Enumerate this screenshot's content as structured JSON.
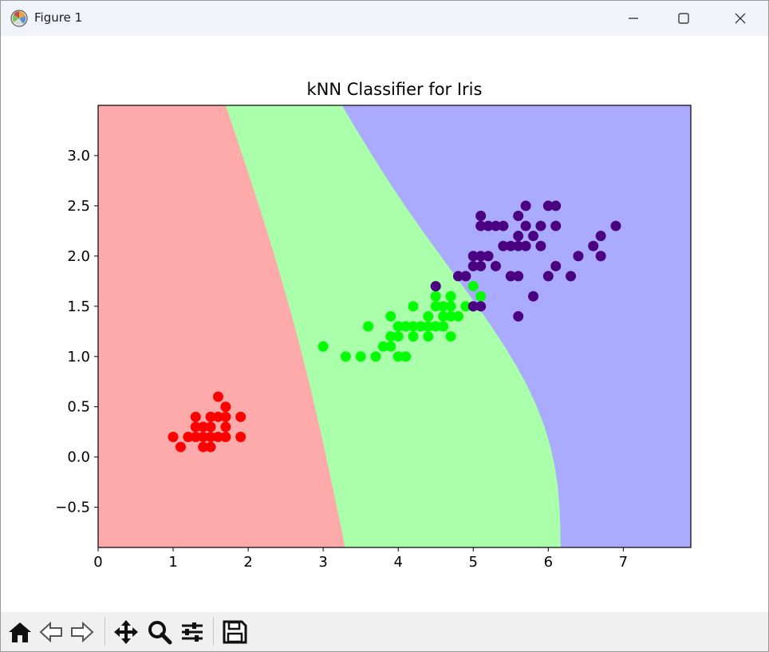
{
  "window": {
    "title": "Figure 1",
    "controls": [
      "minimize",
      "maximize",
      "close"
    ]
  },
  "toolbar": {
    "buttons": [
      "home-icon",
      "back-icon",
      "forward-icon",
      "pan-icon",
      "zoom-icon",
      "configure-subplots-icon",
      "save-icon"
    ]
  },
  "colors": {
    "region_class0": "#ffaaaa",
    "region_class1": "#aaffaa",
    "region_class2": "#aaaaff",
    "point_class0": "#ff0000",
    "point_class1": "#00ff00",
    "point_class2": "#4b0082"
  },
  "chart_data": {
    "type": "scatter",
    "title": "kNN Classifier for Iris",
    "xlabel": "",
    "ylabel": "",
    "xlim": [
      0,
      7.9
    ],
    "ylim": [
      -0.9,
      3.5
    ],
    "xticks": [
      "0",
      "1",
      "2",
      "3",
      "4",
      "5",
      "6",
      "7"
    ],
    "yticks": [
      "−0.5",
      "0.0",
      "0.5",
      "1.0",
      "1.5",
      "2.0",
      "2.5",
      "3.0"
    ],
    "grid": false,
    "legend": "none",
    "decision_regions": [
      {
        "class": 0,
        "boundary_x_at_top": 1.7,
        "boundary_x_at_bottom": 3.3
      },
      {
        "class": 1,
        "boundary_x_at_top": 3.25,
        "boundary_x_at_bottom": 6.15
      },
      {
        "class": 2
      }
    ],
    "series": [
      {
        "class": 0,
        "points": [
          [
            1.0,
            0.2
          ],
          [
            1.1,
            0.1
          ],
          [
            1.2,
            0.2
          ],
          [
            1.3,
            0.2
          ],
          [
            1.3,
            0.3
          ],
          [
            1.3,
            0.4
          ],
          [
            1.4,
            0.1
          ],
          [
            1.4,
            0.2
          ],
          [
            1.4,
            0.3
          ],
          [
            1.5,
            0.1
          ],
          [
            1.5,
            0.2
          ],
          [
            1.5,
            0.3
          ],
          [
            1.5,
            0.4
          ],
          [
            1.6,
            0.2
          ],
          [
            1.6,
            0.4
          ],
          [
            1.6,
            0.6
          ],
          [
            1.7,
            0.2
          ],
          [
            1.7,
            0.3
          ],
          [
            1.7,
            0.4
          ],
          [
            1.7,
            0.5
          ],
          [
            1.9,
            0.2
          ],
          [
            1.9,
            0.4
          ]
        ]
      },
      {
        "class": 1,
        "points": [
          [
            3.0,
            1.1
          ],
          [
            3.3,
            1.0
          ],
          [
            3.5,
            1.0
          ],
          [
            3.6,
            1.3
          ],
          [
            3.7,
            1.0
          ],
          [
            3.8,
            1.1
          ],
          [
            3.9,
            1.1
          ],
          [
            3.9,
            1.2
          ],
          [
            3.9,
            1.4
          ],
          [
            4.0,
            1.0
          ],
          [
            4.0,
            1.2
          ],
          [
            4.0,
            1.3
          ],
          [
            4.1,
            1.0
          ],
          [
            4.1,
            1.3
          ],
          [
            4.2,
            1.2
          ],
          [
            4.2,
            1.3
          ],
          [
            4.2,
            1.5
          ],
          [
            4.3,
            1.3
          ],
          [
            4.4,
            1.2
          ],
          [
            4.4,
            1.3
          ],
          [
            4.4,
            1.4
          ],
          [
            4.5,
            1.3
          ],
          [
            4.5,
            1.5
          ],
          [
            4.5,
            1.6
          ],
          [
            4.6,
            1.3
          ],
          [
            4.6,
            1.4
          ],
          [
            4.6,
            1.5
          ],
          [
            4.7,
            1.2
          ],
          [
            4.7,
            1.4
          ],
          [
            4.7,
            1.5
          ],
          [
            4.7,
            1.6
          ],
          [
            4.8,
            1.4
          ],
          [
            4.9,
            1.5
          ],
          [
            5.0,
            1.7
          ],
          [
            5.1,
            1.6
          ]
        ]
      },
      {
        "class": 2,
        "points": [
          [
            4.5,
            1.7
          ],
          [
            4.8,
            1.8
          ],
          [
            4.9,
            1.8
          ],
          [
            5.0,
            1.5
          ],
          [
            5.0,
            1.9
          ],
          [
            5.0,
            2.0
          ],
          [
            5.1,
            1.5
          ],
          [
            5.1,
            1.9
          ],
          [
            5.1,
            2.0
          ],
          [
            5.1,
            2.3
          ],
          [
            5.1,
            2.4
          ],
          [
            5.2,
            2.0
          ],
          [
            5.2,
            2.3
          ],
          [
            5.3,
            1.9
          ],
          [
            5.3,
            2.3
          ],
          [
            5.4,
            2.1
          ],
          [
            5.4,
            2.3
          ],
          [
            5.5,
            1.8
          ],
          [
            5.5,
            2.1
          ],
          [
            5.6,
            1.4
          ],
          [
            5.6,
            1.8
          ],
          [
            5.6,
            2.1
          ],
          [
            5.6,
            2.2
          ],
          [
            5.6,
            2.4
          ],
          [
            5.7,
            2.1
          ],
          [
            5.7,
            2.3
          ],
          [
            5.7,
            2.5
          ],
          [
            5.8,
            1.6
          ],
          [
            5.8,
            2.2
          ],
          [
            5.9,
            2.1
          ],
          [
            5.9,
            2.3
          ],
          [
            6.0,
            1.8
          ],
          [
            6.0,
            2.5
          ],
          [
            6.1,
            1.9
          ],
          [
            6.1,
            2.3
          ],
          [
            6.1,
            2.5
          ],
          [
            6.3,
            1.8
          ],
          [
            6.4,
            2.0
          ],
          [
            6.6,
            2.1
          ],
          [
            6.7,
            2.0
          ],
          [
            6.7,
            2.2
          ],
          [
            6.9,
            2.3
          ]
        ]
      }
    ]
  }
}
